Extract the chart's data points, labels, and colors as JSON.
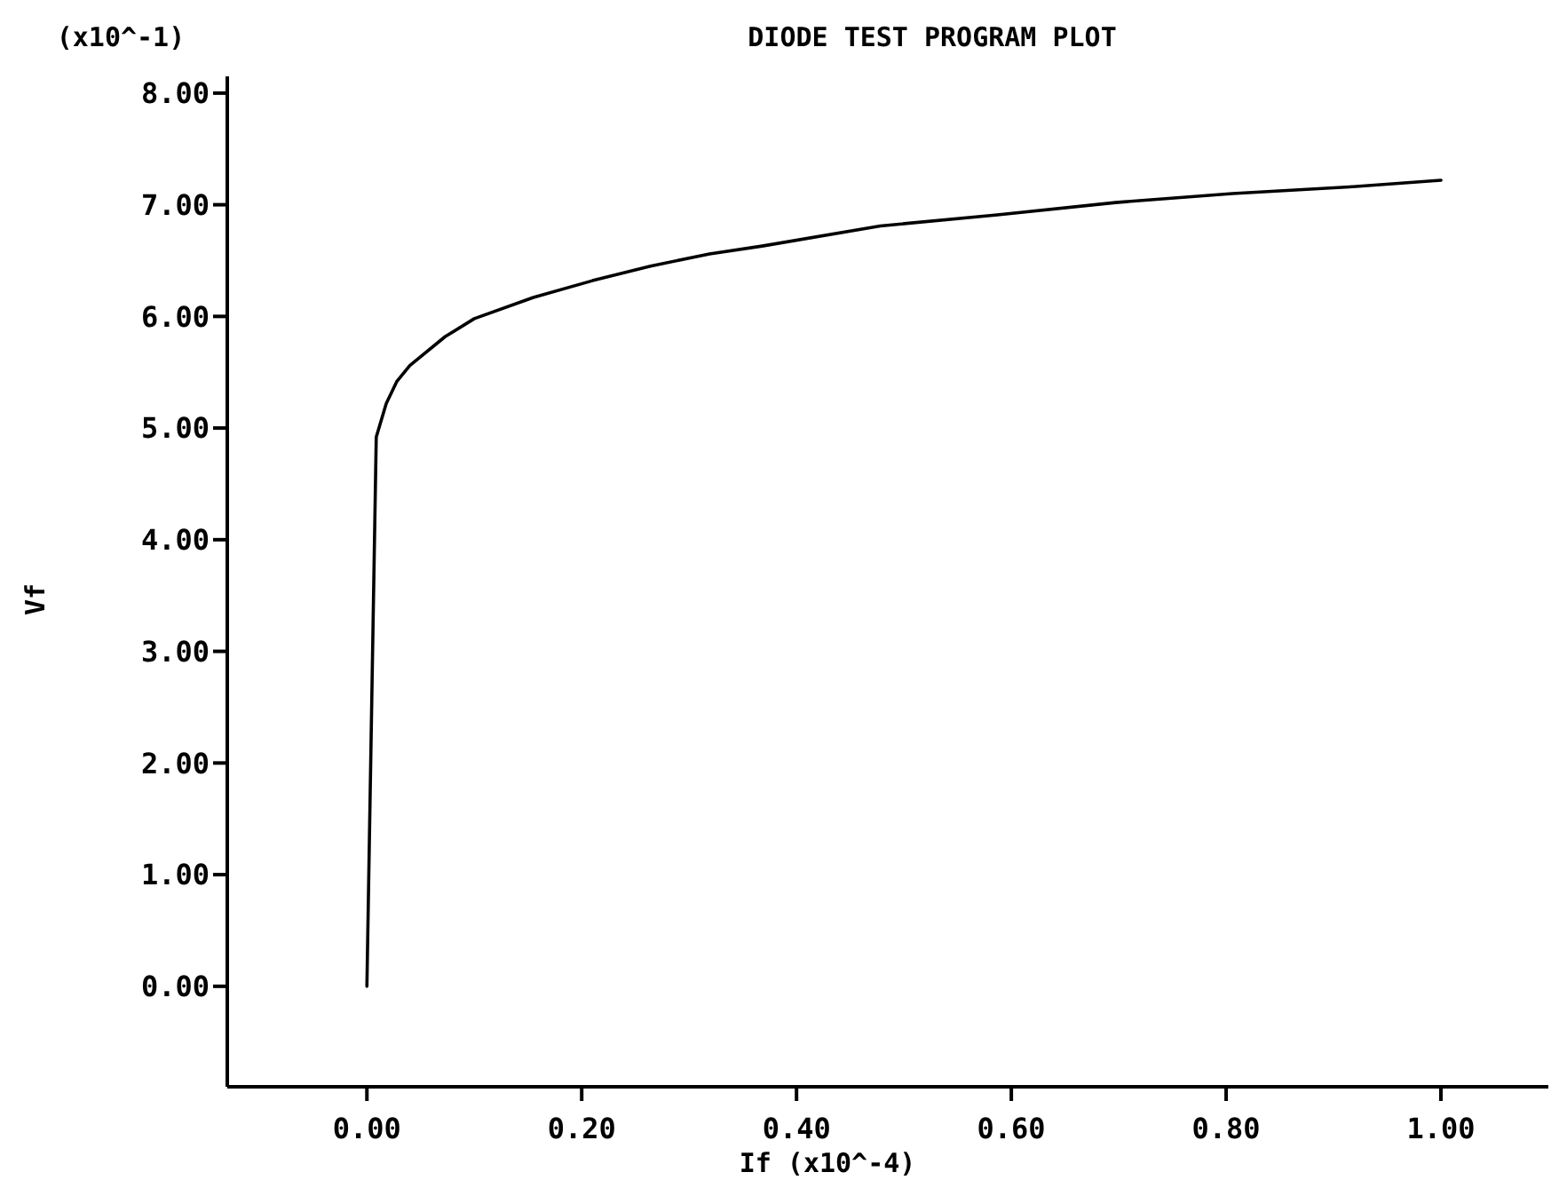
{
  "chart_data": {
    "type": "line",
    "title": "DIODE TEST PROGRAM PLOT",
    "xlabel": "If  (x10^-4)",
    "ylabel": "Vf",
    "annotations": [
      "(x10^-1)"
    ],
    "x": [
      0.0,
      0.0087,
      0.018,
      0.028,
      0.04,
      0.073,
      0.1,
      0.155,
      0.21,
      0.264,
      0.319,
      0.368,
      0.478,
      0.587,
      0.697,
      0.806,
      0.915,
      1.0
    ],
    "series": [
      {
        "color": "#000000",
        "values": [
          0.0,
          4.92,
          5.22,
          5.42,
          5.56,
          5.82,
          5.98,
          6.17,
          6.32,
          6.45,
          6.56,
          6.63,
          6.81,
          6.91,
          7.02,
          7.1,
          7.16,
          7.22
        ]
      }
    ],
    "xlim": [
      -0.13,
      1.1
    ],
    "ylim": [
      -0.9,
      8.15
    ],
    "xticks": [
      {
        "value": 0,
        "label": "0.00"
      },
      {
        "value": 0.2,
        "label": "0.20"
      },
      {
        "value": 0.4,
        "label": "0.40"
      },
      {
        "value": 0.6,
        "label": "0.60"
      },
      {
        "value": 0.8,
        "label": "0.80"
      },
      {
        "value": 1,
        "label": "1.00"
      }
    ],
    "yticks": [
      {
        "value": 0,
        "label": "0.00"
      },
      {
        "value": 1,
        "label": "1.00"
      },
      {
        "value": 2,
        "label": "2.00"
      },
      {
        "value": 3,
        "label": "3.00"
      },
      {
        "value": 4,
        "label": "4.00"
      },
      {
        "value": 5,
        "label": "5.00"
      },
      {
        "value": 6,
        "label": "6.00"
      },
      {
        "value": 7,
        "label": "7.00"
      },
      {
        "value": 8,
        "label": "8.00"
      }
    ],
    "grid": false,
    "marker": "none",
    "line_style": "solid"
  }
}
